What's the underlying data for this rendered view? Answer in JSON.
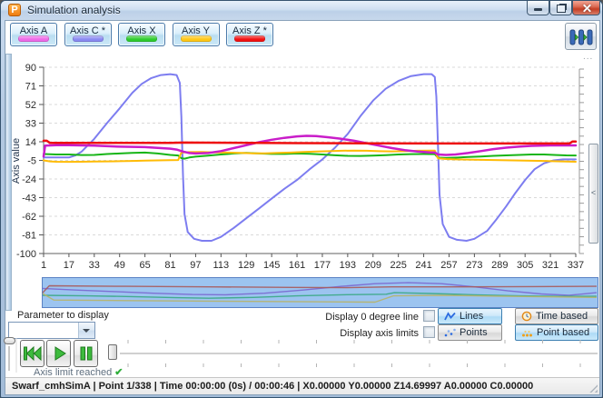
{
  "window": {
    "title": "Simulation analysis",
    "logo_letter": "P"
  },
  "toolbar": {
    "axis_buttons": [
      {
        "label": "Axis A",
        "color": "#ee6ae8"
      },
      {
        "label": "Axis C *",
        "color": "#8a8af2"
      },
      {
        "label": "Axis X",
        "color": "#2ecc2e"
      },
      {
        "label": "Axis Y",
        "color": "#ffc818"
      },
      {
        "label": "Axis Z *",
        "color": "#f21212"
      }
    ]
  },
  "chart_data": {
    "type": "line",
    "title": "",
    "xlabel": "",
    "ylabel": "Axis value",
    "xlim": [
      1,
      337
    ],
    "ylim": [
      -100,
      90
    ],
    "yticks": [
      90,
      71,
      52,
      33,
      14,
      -5,
      -24,
      -43,
      -62,
      -81,
      -100
    ],
    "xticks": [
      1,
      17,
      33,
      49,
      65,
      81,
      97,
      113,
      129,
      145,
      161,
      177,
      193,
      209,
      225,
      241,
      257,
      273,
      289,
      305,
      321,
      337
    ],
    "grid": "horizontal-dashed",
    "legend_position": "toolbar-buttons",
    "overflow_indicator": "...",
    "series": [
      {
        "name": "Axis C *",
        "color": "#7d7df0",
        "width": 2,
        "points": [
          [
            1,
            -2
          ],
          [
            17,
            -2
          ],
          [
            21,
            0
          ],
          [
            25,
            4
          ],
          [
            33,
            17
          ],
          [
            41,
            33
          ],
          [
            49,
            48
          ],
          [
            57,
            64
          ],
          [
            63,
            73
          ],
          [
            69,
            79
          ],
          [
            75,
            82
          ],
          [
            81,
            83
          ],
          [
            85,
            82
          ],
          [
            87,
            74
          ],
          [
            88,
            40
          ],
          [
            89,
            -20
          ],
          [
            90,
            -60
          ],
          [
            92,
            -78
          ],
          [
            96,
            -85
          ],
          [
            101,
            -87
          ],
          [
            107,
            -87
          ],
          [
            113,
            -83
          ],
          [
            121,
            -74
          ],
          [
            129,
            -64
          ],
          [
            137,
            -54
          ],
          [
            145,
            -44
          ],
          [
            153,
            -34
          ],
          [
            161,
            -25
          ],
          [
            169,
            -14
          ],
          [
            177,
            -4
          ],
          [
            185,
            8
          ],
          [
            193,
            22
          ],
          [
            201,
            40
          ],
          [
            209,
            56
          ],
          [
            217,
            68
          ],
          [
            225,
            76
          ],
          [
            233,
            81
          ],
          [
            241,
            83
          ],
          [
            246,
            83
          ],
          [
            248,
            80
          ],
          [
            249,
            60
          ],
          [
            250,
            10
          ],
          [
            251,
            -40
          ],
          [
            253,
            -70
          ],
          [
            257,
            -83
          ],
          [
            262,
            -86
          ],
          [
            268,
            -87
          ],
          [
            273,
            -85
          ],
          [
            281,
            -77
          ],
          [
            287,
            -65
          ],
          [
            293,
            -52
          ],
          [
            299,
            -38
          ],
          [
            305,
            -25
          ],
          [
            311,
            -14
          ],
          [
            317,
            -8
          ],
          [
            323,
            -5
          ],
          [
            329,
            -4
          ],
          [
            337,
            -4
          ]
        ]
      },
      {
        "name": "Axis X",
        "color": "#17b517",
        "width": 2,
        "points": [
          [
            1,
            1.5
          ],
          [
            9,
            1
          ],
          [
            17,
            1
          ],
          [
            25,
            0.5
          ],
          [
            33,
            0.6
          ],
          [
            41,
            1.5
          ],
          [
            49,
            2
          ],
          [
            57,
            2.6
          ],
          [
            65,
            3
          ],
          [
            73,
            2
          ],
          [
            81,
            0.6
          ],
          [
            86,
            0
          ],
          [
            88,
            -2.8
          ],
          [
            90,
            -3.2
          ],
          [
            93,
            -2
          ],
          [
            97,
            -1.2
          ],
          [
            105,
            -0.2
          ],
          [
            113,
            1
          ],
          [
            121,
            2
          ],
          [
            129,
            2.6
          ],
          [
            137,
            2
          ],
          [
            145,
            1.6
          ],
          [
            153,
            1.6
          ],
          [
            161,
            2
          ],
          [
            169,
            1.8
          ],
          [
            177,
            1
          ],
          [
            185,
            0.2
          ],
          [
            193,
            -0.4
          ],
          [
            201,
            -0.5
          ],
          [
            209,
            -0.1
          ],
          [
            217,
            0.4
          ],
          [
            225,
            1
          ],
          [
            233,
            1.4
          ],
          [
            241,
            1.5
          ],
          [
            248,
            1.4
          ],
          [
            250,
            -2.2
          ],
          [
            255,
            -2.6
          ],
          [
            261,
            -2.2
          ],
          [
            269,
            -1.6
          ],
          [
            277,
            -1
          ],
          [
            285,
            -0.4
          ],
          [
            293,
            0.1
          ],
          [
            301,
            0.6
          ],
          [
            309,
            1
          ],
          [
            317,
            1
          ],
          [
            325,
            0.5
          ],
          [
            331,
            0.1
          ],
          [
            337,
            0
          ]
        ]
      },
      {
        "name": "Axis Y",
        "color": "#ffbb05",
        "width": 2,
        "points": [
          [
            1,
            -5
          ],
          [
            5,
            -6
          ],
          [
            9,
            -6.4
          ],
          [
            17,
            -6.5
          ],
          [
            25,
            -6.4
          ],
          [
            33,
            -6.2
          ],
          [
            41,
            -6
          ],
          [
            49,
            -5.8
          ],
          [
            57,
            -5.6
          ],
          [
            65,
            -5.3
          ],
          [
            73,
            -5
          ],
          [
            81,
            -4.8
          ],
          [
            86,
            -4.6
          ],
          [
            88,
            3
          ],
          [
            93,
            3.4
          ],
          [
            101,
            3.5
          ],
          [
            109,
            3.2
          ],
          [
            117,
            3
          ],
          [
            125,
            2.6
          ],
          [
            133,
            2.2
          ],
          [
            141,
            2.2
          ],
          [
            149,
            2.6
          ],
          [
            157,
            3
          ],
          [
            165,
            3.5
          ],
          [
            173,
            4
          ],
          [
            181,
            4.4
          ],
          [
            189,
            4.8
          ],
          [
            197,
            5
          ],
          [
            205,
            4.8
          ],
          [
            213,
            4.4
          ],
          [
            221,
            4.2
          ],
          [
            229,
            4.4
          ],
          [
            237,
            4.8
          ],
          [
            245,
            5
          ],
          [
            248,
            5
          ],
          [
            250,
            -3
          ],
          [
            255,
            -3.6
          ],
          [
            261,
            -4
          ],
          [
            269,
            -4.2
          ],
          [
            277,
            -4.4
          ],
          [
            285,
            -4.6
          ],
          [
            293,
            -4.9
          ],
          [
            301,
            -5.1
          ],
          [
            309,
            -5.4
          ],
          [
            317,
            -5.6
          ],
          [
            325,
            -5.9
          ],
          [
            331,
            -6.1
          ],
          [
            337,
            -6.4
          ]
        ]
      },
      {
        "name": "Axis A",
        "color": "#c91dc9",
        "width": 2.5,
        "points": [
          [
            1,
            -1
          ],
          [
            2,
            10
          ],
          [
            9,
            10.5
          ],
          [
            17,
            10.5
          ],
          [
            33,
            10
          ],
          [
            49,
            9
          ],
          [
            65,
            8.5
          ],
          [
            81,
            7
          ],
          [
            85,
            6
          ],
          [
            89,
            4
          ],
          [
            93,
            2.5
          ],
          [
            97,
            2
          ],
          [
            105,
            2.5
          ],
          [
            113,
            4.5
          ],
          [
            121,
            7.5
          ],
          [
            129,
            10.5
          ],
          [
            137,
            13.5
          ],
          [
            145,
            16
          ],
          [
            153,
            18
          ],
          [
            161,
            19.5
          ],
          [
            167,
            20
          ],
          [
            173,
            19.8
          ],
          [
            181,
            18.5
          ],
          [
            189,
            17
          ],
          [
            197,
            15
          ],
          [
            205,
            12.5
          ],
          [
            213,
            10
          ],
          [
            221,
            7.5
          ],
          [
            229,
            5.5
          ],
          [
            237,
            4
          ],
          [
            245,
            3.2
          ],
          [
            248,
            3
          ],
          [
            250,
            1
          ],
          [
            255,
            0.6
          ],
          [
            261,
            1
          ],
          [
            269,
            2.5
          ],
          [
            277,
            4.5
          ],
          [
            285,
            6.5
          ],
          [
            293,
            8
          ],
          [
            301,
            9
          ],
          [
            309,
            9.8
          ],
          [
            321,
            10.3
          ],
          [
            337,
            10.3
          ]
        ]
      },
      {
        "name": "Axis Z *",
        "color": "#ee0f0f",
        "width": 2.5,
        "points": [
          [
            1,
            15
          ],
          [
            3,
            15
          ],
          [
            5,
            12.8
          ],
          [
            33,
            12.8
          ],
          [
            81,
            12.8
          ],
          [
            89,
            13.2
          ],
          [
            121,
            13
          ],
          [
            161,
            12.6
          ],
          [
            209,
            12.4
          ],
          [
            257,
            12.2
          ],
          [
            305,
            12.2
          ],
          [
            333,
            12.2
          ],
          [
            335,
            14.3
          ],
          [
            337,
            14.3
          ]
        ]
      }
    ]
  },
  "overview": {
    "series": [
      {
        "name": "purple",
        "color": "#7a68cf",
        "points": [
          [
            0,
            0.36
          ],
          [
            0.06,
            0.42
          ],
          [
            0.13,
            0.48
          ],
          [
            0.2,
            0.54
          ],
          [
            0.27,
            0.59
          ],
          [
            0.33,
            0.6
          ],
          [
            0.4,
            0.54
          ],
          [
            0.47,
            0.42
          ],
          [
            0.54,
            0.28
          ],
          [
            0.6,
            0.18
          ],
          [
            0.66,
            0.14
          ],
          [
            0.72,
            0.18
          ],
          [
            0.78,
            0.3
          ],
          [
            0.84,
            0.45
          ],
          [
            0.9,
            0.57
          ],
          [
            0.95,
            0.62
          ],
          [
            1,
            0.52
          ]
        ]
      },
      {
        "name": "maroon",
        "color": "#a85a5a",
        "points": [
          [
            0,
            0.52
          ],
          [
            0.012,
            0.26
          ],
          [
            0.15,
            0.28
          ],
          [
            0.3,
            0.3
          ],
          [
            0.45,
            0.32
          ],
          [
            0.55,
            0.33
          ],
          [
            0.63,
            0.3
          ],
          [
            0.75,
            0.3
          ],
          [
            0.88,
            0.29
          ],
          [
            1,
            0.28
          ]
        ]
      },
      {
        "name": "teal",
        "color": "#3aa884",
        "points": [
          [
            0,
            0.62
          ],
          [
            0.08,
            0.64
          ],
          [
            0.16,
            0.67
          ],
          [
            0.24,
            0.71
          ],
          [
            0.3,
            0.73
          ],
          [
            0.38,
            0.7
          ],
          [
            0.46,
            0.64
          ],
          [
            0.54,
            0.6
          ],
          [
            0.62,
            0.58
          ],
          [
            0.635,
            0.52
          ],
          [
            0.7,
            0.55
          ],
          [
            0.78,
            0.6
          ],
          [
            0.86,
            0.64
          ],
          [
            0.93,
            0.66
          ],
          [
            1,
            0.66
          ]
        ]
      },
      {
        "name": "olive",
        "color": "#b8b468",
        "points": [
          [
            0,
            0.55
          ],
          [
            0.02,
            0.8
          ],
          [
            0.15,
            0.82
          ],
          [
            0.3,
            0.84
          ],
          [
            0.45,
            0.86
          ],
          [
            0.6,
            0.88
          ],
          [
            0.633,
            0.64
          ],
          [
            0.72,
            0.62
          ],
          [
            0.82,
            0.65
          ],
          [
            0.92,
            0.68
          ],
          [
            1,
            0.7
          ]
        ]
      }
    ]
  },
  "controls": {
    "parameter_label": "Parameter to display",
    "parameter_value": "",
    "checkbox_zero_line": {
      "label": "Display 0 degree line",
      "checked": false
    },
    "checkbox_axis_limits": {
      "label": "Display axis limits",
      "checked": false
    },
    "lines_button": {
      "label": "Lines",
      "selected": true
    },
    "points_button": {
      "label": "Points",
      "selected": false
    },
    "time_based_button": {
      "label": "Time based",
      "selected": false
    },
    "point_based_button": {
      "label": "Point based",
      "selected": true
    }
  },
  "playback": {
    "axis_limit_text": "Axis limit reached",
    "check_mark": "✔"
  },
  "status_bar": {
    "text": "Swarf_cmhSimA | Point 1/338 | Time 00:00:00 (0s) / 00:00:46 | X0.00000 Y0.00000 Z14.69997 A0.00000 C0.00000"
  }
}
